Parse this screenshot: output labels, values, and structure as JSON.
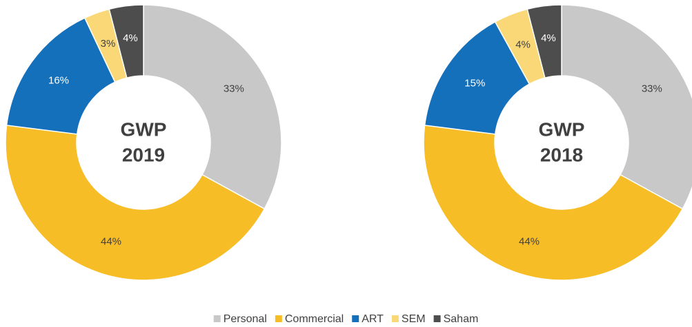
{
  "chart_data": [
    {
      "type": "donut",
      "title": "GWP",
      "subtitle": "2019",
      "categories": [
        "Personal",
        "Commercial",
        "ART",
        "SEM",
        "Saham"
      ],
      "values": [
        33,
        44,
        16,
        3,
        4
      ],
      "value_labels": [
        "33%",
        "44%",
        "16%",
        "3%",
        "4%"
      ],
      "colors": [
        "#c8c8c8",
        "#f7bd27",
        "#1570bb",
        "#fbd877",
        "#4d4d4d"
      ],
      "legend": "bottom"
    },
    {
      "type": "donut",
      "title": "GWP",
      "subtitle": "2018",
      "categories": [
        "Personal",
        "Commercial",
        "ART",
        "SEM",
        "Saham"
      ],
      "values": [
        33,
        44,
        15,
        4,
        4
      ],
      "value_labels": [
        "33%",
        "44%",
        "15%",
        "4%",
        "4%"
      ],
      "colors": [
        "#c8c8c8",
        "#f7bd27",
        "#1570bb",
        "#fbd877",
        "#4d4d4d"
      ],
      "legend": "bottom"
    }
  ]
}
